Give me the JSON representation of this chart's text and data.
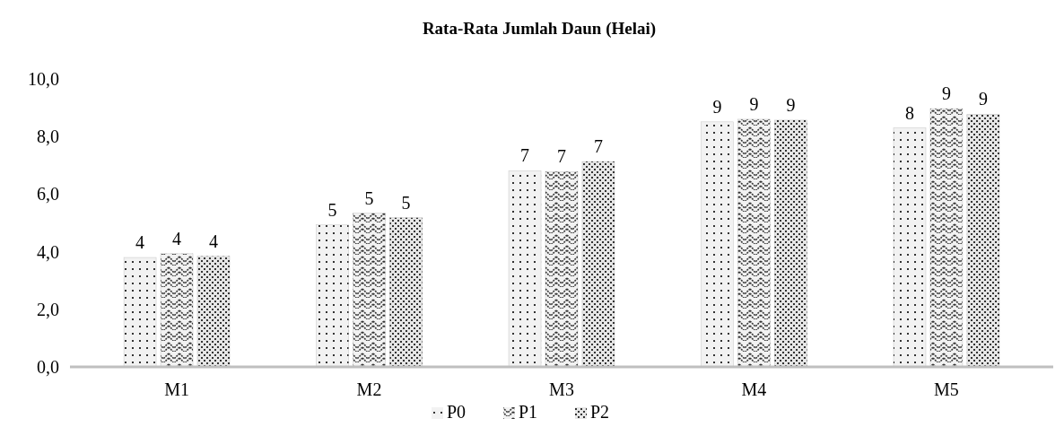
{
  "chart_data": {
    "type": "bar",
    "title": "Rata-Rata Jumlah Daun (Helai)",
    "categories": [
      "M1",
      "M2",
      "M3",
      "M4",
      "M5"
    ],
    "series": [
      {
        "name": "P0",
        "color": "#333333",
        "values": [
          3.8,
          4.93,
          6.81,
          8.51,
          8.3
        ],
        "value_labels": [
          "4",
          "5",
          "7",
          "9",
          "8"
        ]
      },
      {
        "name": "P1",
        "color": "#333333",
        "values": [
          3.93,
          5.34,
          6.78,
          8.6,
          8.97
        ],
        "value_labels": [
          "4",
          "5",
          "7",
          "9",
          "9"
        ]
      },
      {
        "name": "P2",
        "color": "#333333",
        "values": [
          3.84,
          5.18,
          7.13,
          8.57,
          8.77
        ],
        "value_labels": [
          "4",
          "5",
          "7",
          "9",
          "9"
        ]
      }
    ],
    "ylim": [
      0,
      10
    ],
    "yticks": [
      {
        "value": 0,
        "label": "0,0"
      },
      {
        "value": 2,
        "label": "2,0"
      },
      {
        "value": 4,
        "label": "4,0"
      },
      {
        "value": 6,
        "label": "6,0"
      },
      {
        "value": 8,
        "label": "8,0"
      },
      {
        "value": 10,
        "label": "10,0"
      }
    ],
    "grid": false,
    "legend": "bottom"
  }
}
